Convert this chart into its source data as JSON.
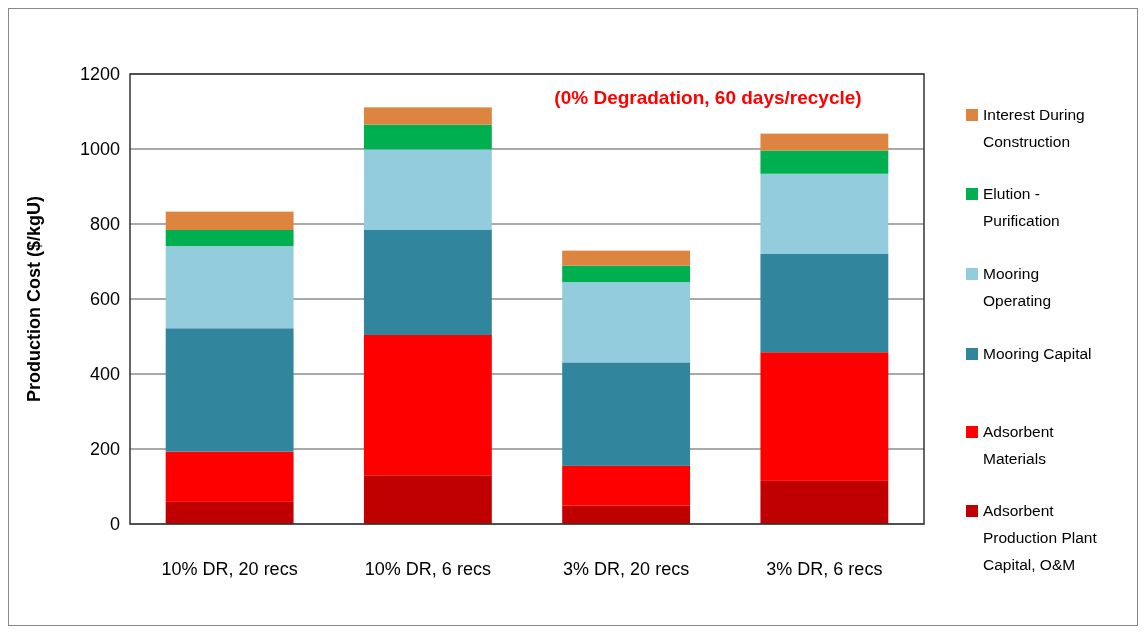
{
  "chart_data": {
    "type": "bar",
    "stacked": true,
    "ylabel": "Production Cost ($/kgU)",
    "categories": [
      "10% DR, 20 recs",
      "10% DR, 6 recs",
      "3% DR, 20 recs",
      "3% DR, 6 recs"
    ],
    "series": [
      {
        "name": "Adsorbent Production Plant Capital, O&M",
        "color": "#c00000",
        "values": [
          59,
          130,
          49,
          115
        ]
      },
      {
        "name": "Adsorbent Materials",
        "color": "#ff0000",
        "values": [
          134,
          374,
          106,
          343
        ]
      },
      {
        "name": "Mooring Capital",
        "color": "#31859c",
        "values": [
          329,
          280,
          276,
          262
        ]
      },
      {
        "name": "Mooring Operating",
        "color": "#93cddd",
        "values": [
          219,
          215,
          214,
          214
        ]
      },
      {
        "name": "Elution - Purification",
        "color": "#00b050",
        "values": [
          43,
          66,
          44,
          62
        ]
      },
      {
        "name": "Interest During Construction",
        "color": "#dd8441",
        "values": [
          49,
          46,
          40,
          45
        ]
      }
    ],
    "ylim": [
      0,
      1200
    ],
    "yticks": [
      0,
      200,
      400,
      600,
      800,
      1000,
      1200
    ],
    "grid": "y",
    "legend": "right",
    "annotations": [
      "(0% Degradation, 60 days/recycle)"
    ]
  }
}
